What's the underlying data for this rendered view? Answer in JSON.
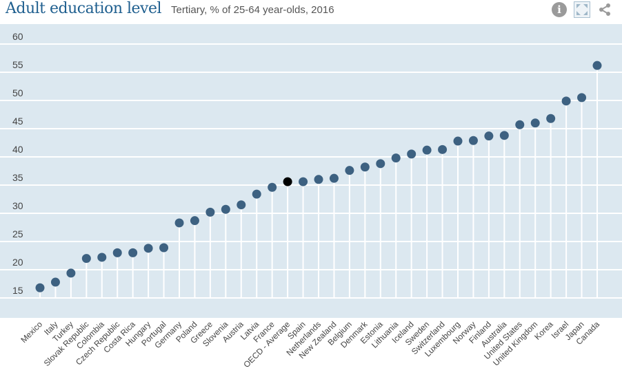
{
  "header": {
    "title": "Adult education level",
    "subtitle": "Tertiary, % of 25-64 year-olds, 2016"
  },
  "toolbar": {
    "info_icon": "info-icon",
    "expand_icon": "expand-icon",
    "share_icon": "share-icon"
  },
  "colors": {
    "point": "#3d6181",
    "highlight": "#000000",
    "background": "#dce8f0",
    "title": "#1f5f8f"
  },
  "chart_data": {
    "type": "scatter",
    "title": "Adult education level",
    "subtitle": "Tertiary, % of 25-64 year-olds, 2016",
    "xlabel": "",
    "ylabel": "",
    "ylim": [
      15,
      60
    ],
    "yticks": [
      15,
      20,
      25,
      30,
      35,
      40,
      45,
      50,
      55,
      60
    ],
    "grid": true,
    "highlight": "OECD - Average",
    "categories": [
      "Mexico",
      "Italy",
      "Turkey",
      "Slovak Republic",
      "Colombia",
      "Czech Republic",
      "Costa Rica",
      "Hungary",
      "Portugal",
      "Germany",
      "Poland",
      "Greece",
      "Slovenia",
      "Austria",
      "Latvia",
      "France",
      "OECD - Average",
      "Spain",
      "Netherlands",
      "New Zealand",
      "Belgium",
      "Denmark",
      "Estonia",
      "Lithuania",
      "Iceland",
      "Sweden",
      "Switzerland",
      "Luxembourg",
      "Norway",
      "Finland",
      "Australia",
      "United States",
      "United Kingdom",
      "Korea",
      "Israel",
      "Japan",
      "Canada"
    ],
    "values": [
      16.8,
      17.8,
      19.4,
      22.0,
      22.2,
      23.0,
      23.0,
      23.8,
      23.9,
      28.3,
      28.7,
      30.2,
      30.7,
      31.5,
      33.4,
      34.6,
      35.6,
      35.6,
      36.0,
      36.2,
      37.6,
      38.2,
      38.8,
      39.8,
      40.5,
      41.2,
      41.3,
      42.8,
      42.9,
      43.7,
      43.8,
      45.7,
      46.0,
      46.8,
      49.9,
      50.5,
      56.2
    ]
  }
}
